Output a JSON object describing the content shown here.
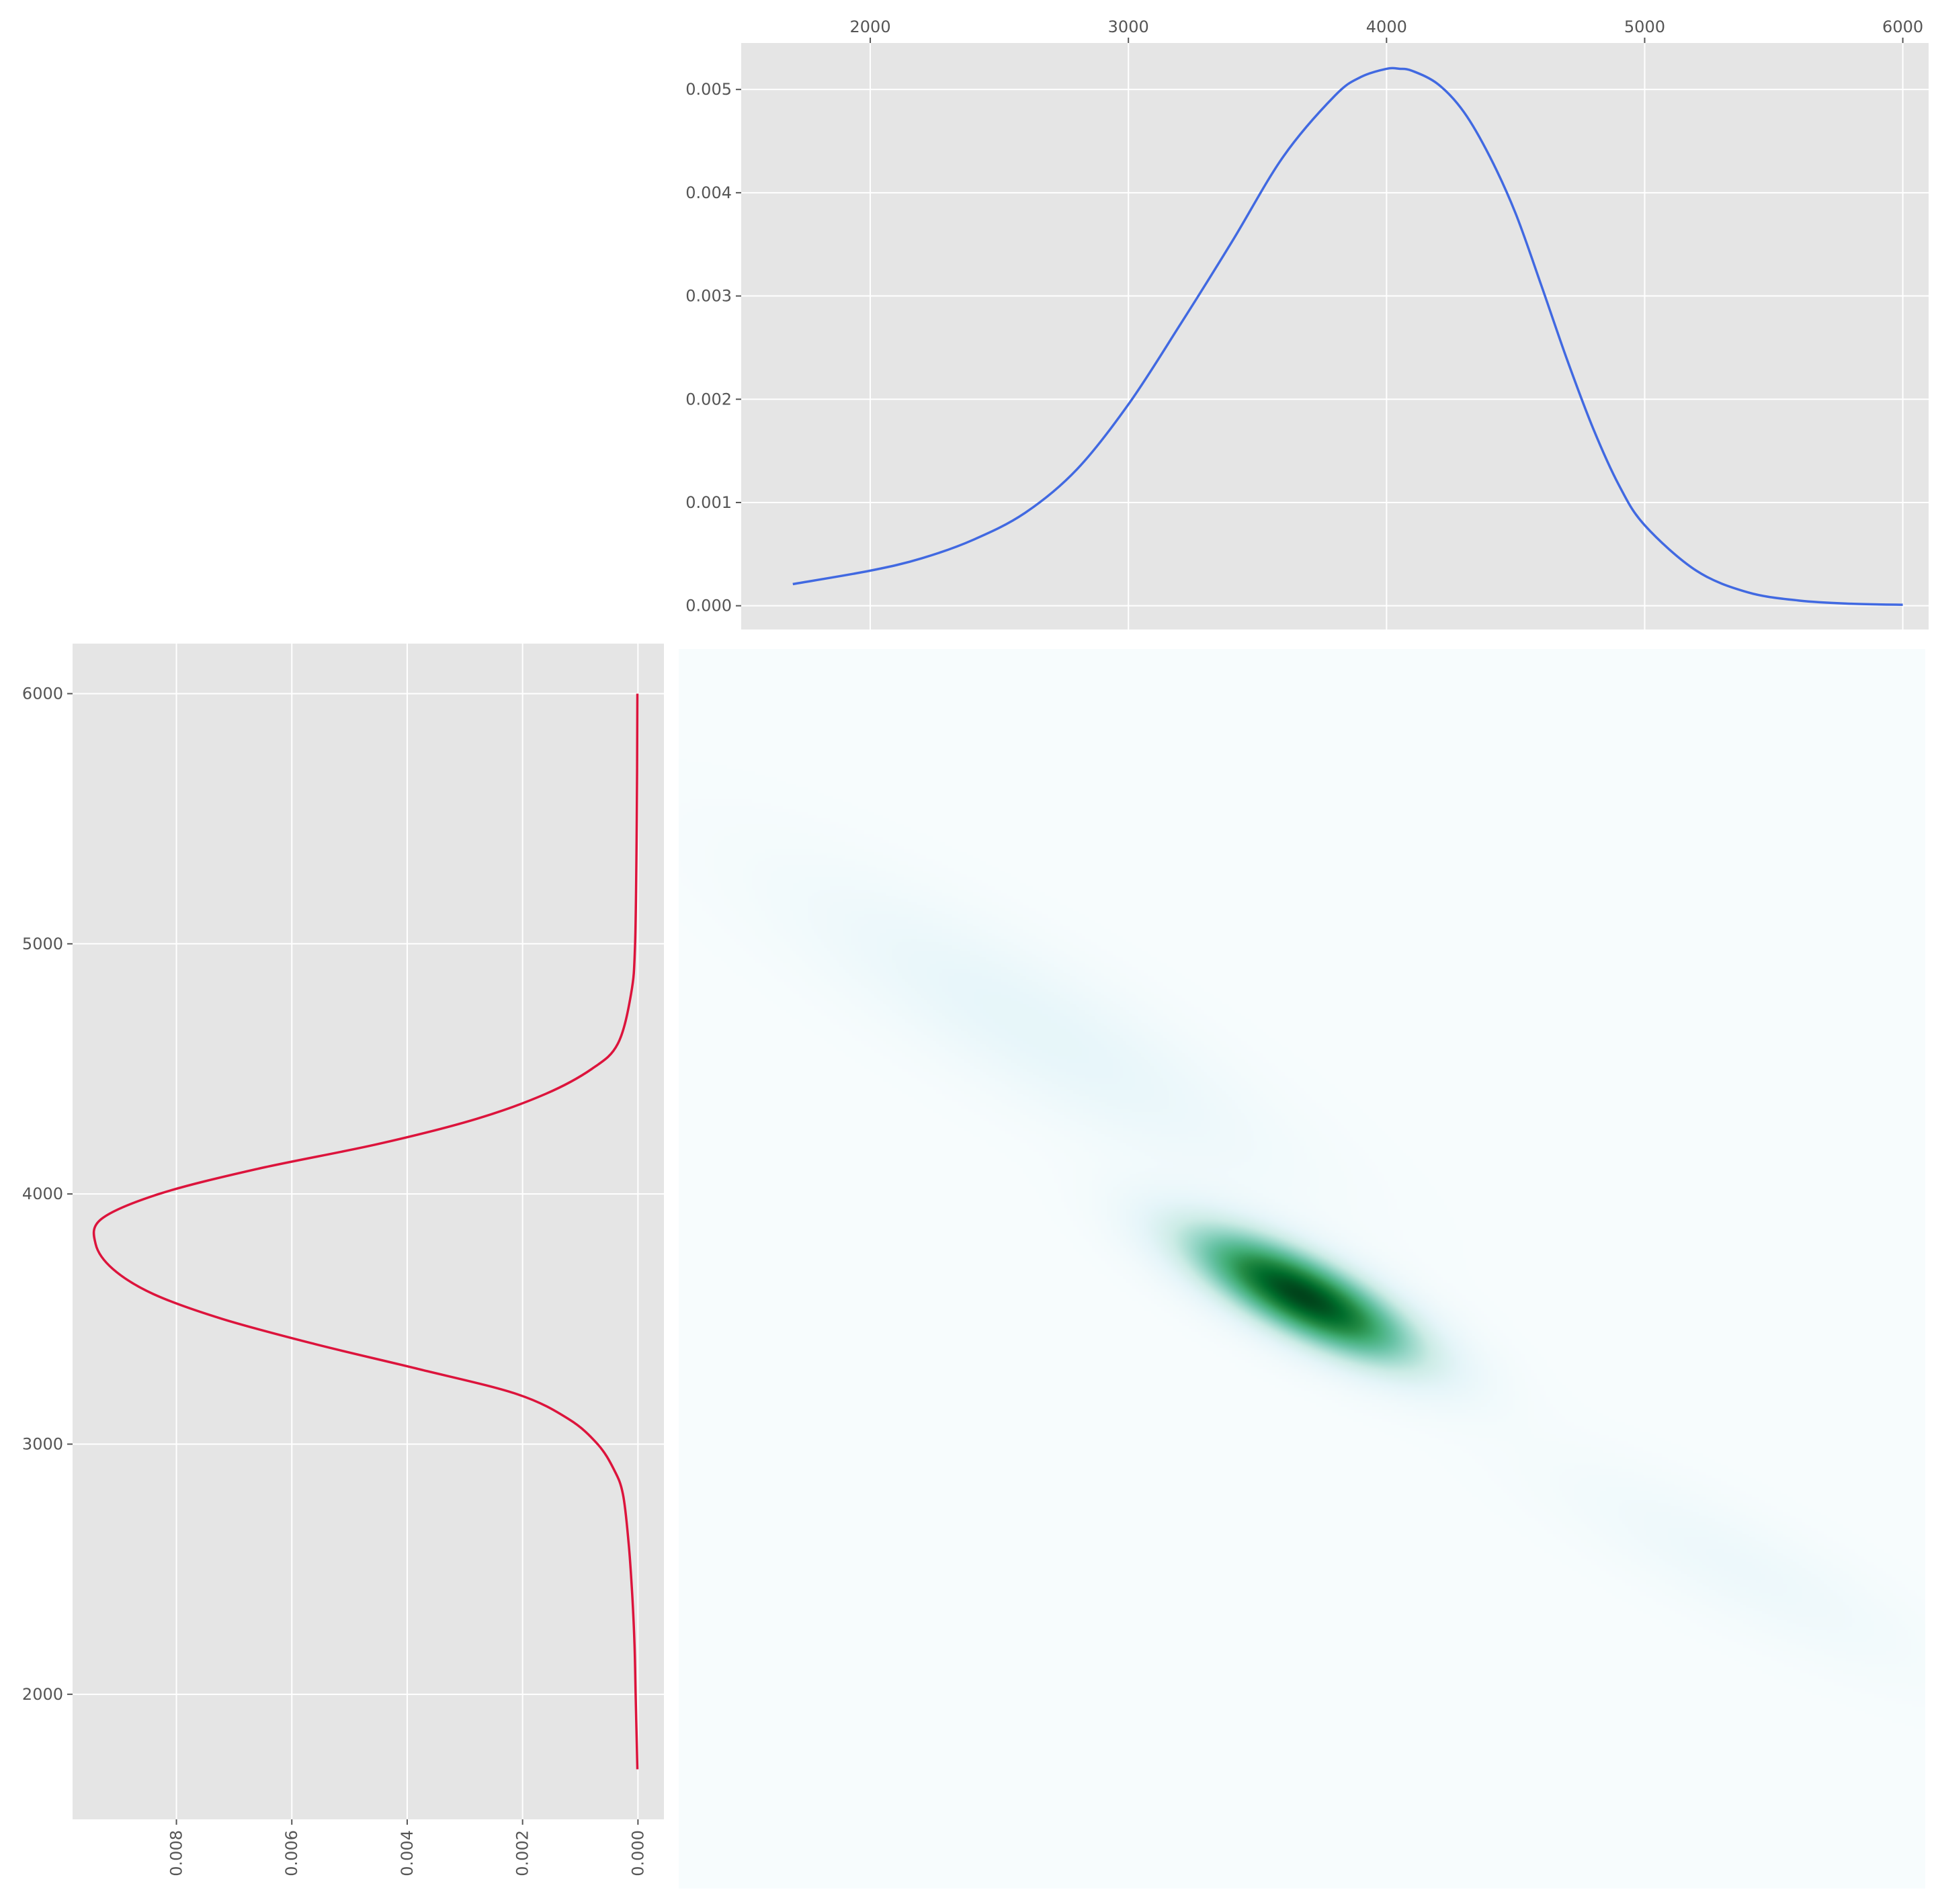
{
  "chart_data": [
    {
      "id": "top-marginal",
      "type": "line",
      "title": "",
      "xlabel": "",
      "ylabel": "",
      "xlim": [
        1500,
        6100
      ],
      "ylim": [
        -0.00023,
        0.00545
      ],
      "xticks": [
        2000,
        3000,
        4000,
        5000,
        6000
      ],
      "xtick_labels": [
        "2000",
        "3000",
        "4000",
        "5000",
        "6000"
      ],
      "xtick_position": "top",
      "yticks": [
        0,
        0.001,
        0.002,
        0.003,
        0.004,
        0.005
      ],
      "ytick_labels": [
        "0.000",
        "0.001",
        "0.002",
        "0.003",
        "0.004",
        "0.005"
      ],
      "grid": true,
      "background": "#e5e5e5",
      "series": [
        {
          "color": "#4169e1",
          "x": [
            1700,
            2000,
            2200,
            2400,
            2600,
            2800,
            3000,
            3200,
            3400,
            3600,
            3800,
            3900,
            4000,
            4050,
            4100,
            4200,
            4300,
            4400,
            4500,
            4600,
            4700,
            4800,
            4900,
            5000,
            5200,
            5400,
            5600,
            5800,
            6000
          ],
          "y": [
            0.00021,
            0.00034,
            0.00046,
            0.00064,
            0.0009,
            0.00132,
            0.00195,
            0.00272,
            0.00352,
            0.00435,
            0.00494,
            0.00512,
            0.0052,
            0.0052,
            0.00518,
            0.00505,
            0.00478,
            0.00435,
            0.0038,
            0.0031,
            0.00238,
            0.00172,
            0.00117,
            0.00078,
            0.00034,
            0.00013,
            5e-05,
            2e-05,
            1e-05
          ]
        }
      ]
    },
    {
      "id": "left-marginal",
      "type": "line",
      "orientation": "horizontal",
      "title": "",
      "xlabel": "",
      "ylabel": "",
      "xlim": [
        0.0098,
        -0.00045
      ],
      "xaxis": "inverted",
      "ylim": [
        1500,
        6200
      ],
      "xticks": [
        0.008,
        0.006,
        0.004,
        0.002,
        0
      ],
      "xtick_labels": [
        "0.008",
        "0.006",
        "0.004",
        "0.002",
        "0.000"
      ],
      "xtick_position": "bottom",
      "xtick_rotation": 90,
      "yticks": [
        2000,
        3000,
        4000,
        5000,
        6000
      ],
      "ytick_labels": [
        "2000",
        "3000",
        "4000",
        "5000",
        "6000"
      ],
      "grid": true,
      "background": "#e5e5e5",
      "series": [
        {
          "color": "#dc143c",
          "density": [
            1e-05,
            4e-05,
            6e-05,
            0.0001,
            0.00016,
            0.00026,
            0.00042,
            0.0007,
            0.0012,
            0.0021,
            0.0038,
            0.0056,
            0.0072,
            0.0084,
            0.0091,
            0.0094,
            0.0093,
            0.0083,
            0.0066,
            0.0045,
            0.0028,
            0.0016,
            0.0008,
            0.00035,
            0.00012,
            5e-05,
            2e-05,
            1e-05
          ],
          "value": [
            1700,
            2000,
            2200,
            2400,
            2600,
            2800,
            2900,
            3000,
            3100,
            3200,
            3300,
            3400,
            3500,
            3600,
            3700,
            3800,
            3900,
            4000,
            4100,
            4200,
            4300,
            4400,
            4500,
            4600,
            4800,
            5000,
            5500,
            6000
          ]
        }
      ]
    },
    {
      "id": "joint-density",
      "type": "heatmap",
      "title": "",
      "xlabel": "",
      "ylabel": "",
      "colormap": [
        "#f7fcfd",
        "#e5f5f9",
        "#ccece6",
        "#99d8c9",
        "#66c2a4",
        "#41ae76",
        "#238b45",
        "#006d2c",
        "#00441b"
      ],
      "background": "#f7fcfd",
      "axes": "off",
      "components": [
        {
          "mean": [
            3800,
            3700
          ],
          "sd_along": 300,
          "sd_across": 95,
          "angle_deg": -27,
          "weight": 1.0
        },
        {
          "mean": [
            2800,
            4700
          ],
          "sd_along": 650,
          "sd_across": 160,
          "angle_deg": -30,
          "weight": 0.09
        },
        {
          "mean": [
            5400,
            2700
          ],
          "sd_along": 500,
          "sd_across": 120,
          "angle_deg": -27,
          "weight": 0.05
        }
      ]
    }
  ]
}
